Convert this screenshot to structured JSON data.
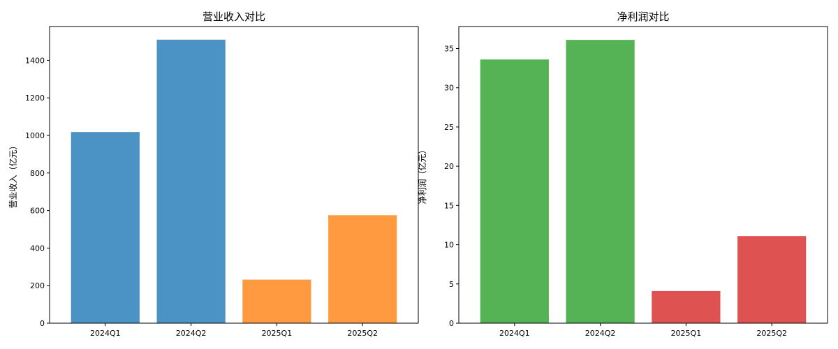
{
  "chart_data": [
    {
      "type": "bar",
      "title": "营业收入对比",
      "xlabel": "",
      "ylabel": "营业收入（亿元）",
      "categories": [
        "2024Q1",
        "2024Q2",
        "2025Q1",
        "2025Q2"
      ],
      "values": [
        1018,
        1510,
        232,
        575
      ],
      "colors": [
        "#4c93c5",
        "#4c93c5",
        "#ff9a40",
        "#ff9a40"
      ],
      "ylim": [
        0,
        1580
      ],
      "yticks": [
        0,
        200,
        400,
        600,
        800,
        1000,
        1200,
        1400
      ],
      "grid": false,
      "legend": "none"
    },
    {
      "type": "bar",
      "title": "净利润对比",
      "xlabel": "",
      "ylabel": "净利润（亿元）",
      "categories": [
        "2024Q1",
        "2024Q2",
        "2025Q1",
        "2025Q2"
      ],
      "values": [
        33.6,
        36.1,
        4.1,
        11.1
      ],
      "colors": [
        "#55b355",
        "#55b355",
        "#df5252",
        "#df5252"
      ],
      "ylim": [
        0,
        37.8
      ],
      "yticks": [
        0,
        5,
        10,
        15,
        20,
        25,
        30,
        35
      ],
      "grid": false,
      "legend": "none"
    }
  ]
}
